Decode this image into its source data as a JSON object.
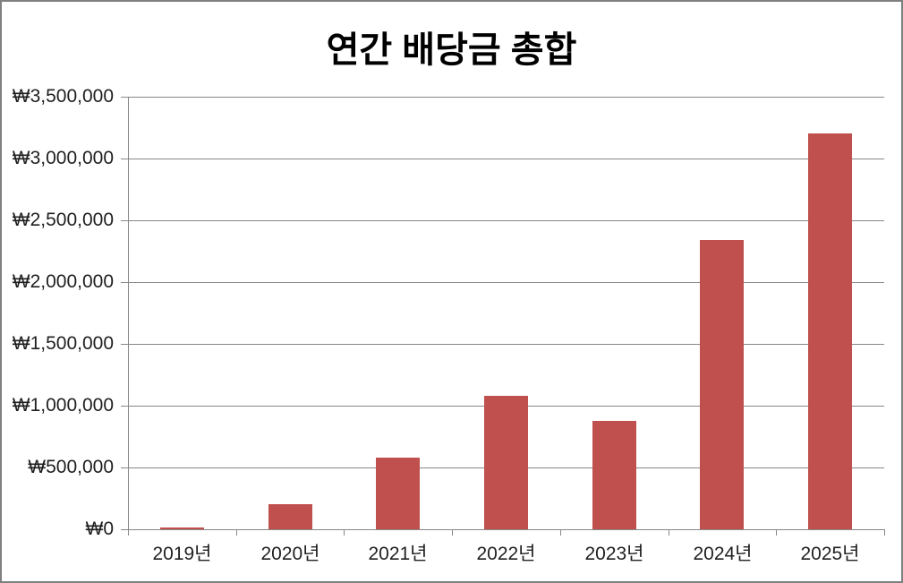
{
  "chart_data": {
    "type": "bar",
    "title": "연간 배당금 총합",
    "categories": [
      "2019년",
      "2020년",
      "2021년",
      "2022년",
      "2023년",
      "2024년",
      "2025년"
    ],
    "values": [
      15000,
      200000,
      580000,
      1080000,
      875000,
      2340000,
      3200000
    ],
    "series_name": "연간 배당금 총합",
    "xlabel": "",
    "ylabel": "",
    "ylim": [
      0,
      3500000
    ],
    "ytick_step": 500000,
    "ytick_labels": [
      "₩0",
      "₩500,000",
      "₩1,000,000",
      "₩1,500,000",
      "₩2,000,000",
      "₩2,500,000",
      "₩3,000,000",
      "₩3,500,000"
    ],
    "grid": true,
    "legend_position": "none",
    "colors": {
      "bar": "#C0504D",
      "gridline": "#878787",
      "axis": "#878787",
      "label_text": "#1f1f1f",
      "title_text": "#000000",
      "chart_border": "#808080",
      "background": "#ffffff"
    }
  }
}
